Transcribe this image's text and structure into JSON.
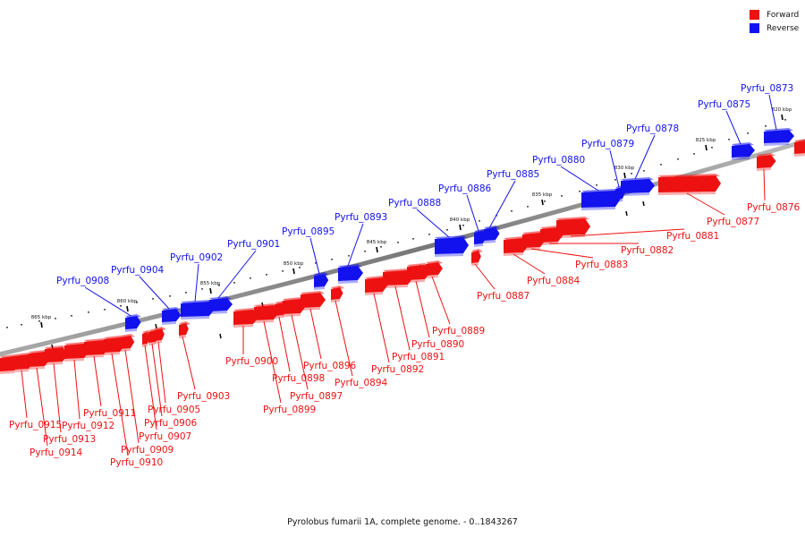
{
  "colors": {
    "forward": "#ee1111",
    "reverse": "#1212ee",
    "backbone": "#888888"
  },
  "legend": {
    "forward_label": "Forward",
    "reverse_label": "Reverse"
  },
  "caption": "Pyrolobus fumarii 1A, complete genome. - 0..1843267",
  "kbp_ticks": [
    "820 kbp",
    "825 kbp",
    "830 kbp",
    "835 kbp",
    "840 kbp",
    "845 kbp",
    "850 kbp",
    "855 kbp",
    "860 kbp",
    "865 kbp"
  ],
  "reverse_genes": [
    "Pyrfu_0873",
    "Pyrfu_0875",
    "Pyrfu_0878",
    "Pyrfu_0879",
    "Pyrfu_0880",
    "Pyrfu_0885",
    "Pyrfu_0886",
    "Pyrfu_0888",
    "Pyrfu_0893",
    "Pyrfu_0895",
    "Pyrfu_0901",
    "Pyrfu_0902",
    "Pyrfu_0904",
    "Pyrfu_0908"
  ],
  "forward_genes": [
    "Pyrfu_0876",
    "Pyrfu_0877",
    "Pyrfu_0881",
    "Pyrfu_0882",
    "Pyrfu_0883",
    "Pyrfu_0884",
    "Pyrfu_0887",
    "Pyrfu_0889",
    "Pyrfu_0890",
    "Pyrfu_0891",
    "Pyrfu_0892",
    "Pyrfu_0894",
    "Pyrfu_0896",
    "Pyrfu_0897",
    "Pyrfu_0898",
    "Pyrfu_0899",
    "Pyrfu_0900",
    "Pyrfu_0903",
    "Pyrfu_0905",
    "Pyrfu_0906",
    "Pyrfu_0907",
    "Pyrfu_0909",
    "Pyrfu_0910",
    "Pyrfu_0911",
    "Pyrfu_0912",
    "Pyrfu_0913",
    "Pyrfu_0914",
    "Pyrfu_0915"
  ]
}
